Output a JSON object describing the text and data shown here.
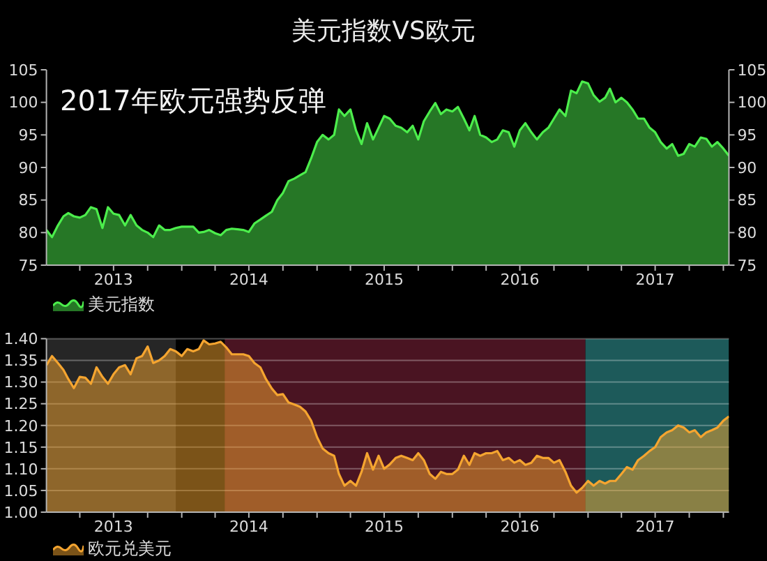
{
  "chart_data": [
    {
      "type": "area",
      "title": "美元指数VS欧元",
      "annotations": [
        "2017年欧元强势反弹"
      ],
      "x": [
        "2013-01-01",
        "2013-01-16",
        "2013-02-01",
        "2013-02-16",
        "2013-03-01",
        "2013-03-16",
        "2013-04-01",
        "2013-04-16",
        "2013-05-01",
        "2013-05-16",
        "2013-06-01",
        "2013-06-16",
        "2013-07-01",
        "2013-07-16",
        "2013-08-01",
        "2013-08-16",
        "2013-09-01",
        "2013-09-16",
        "2013-10-01",
        "2013-10-16",
        "2013-11-01",
        "2013-11-16",
        "2013-12-01",
        "2013-12-16",
        "2014-01-01",
        "2014-01-16",
        "2014-02-01",
        "2014-02-16",
        "2014-03-01",
        "2014-03-16",
        "2014-04-01",
        "2014-04-16",
        "2014-05-01",
        "2014-05-16",
        "2014-06-01",
        "2014-06-16",
        "2014-07-01",
        "2014-07-16",
        "2014-08-01",
        "2014-08-16",
        "2014-09-01",
        "2014-09-16",
        "2014-10-01",
        "2014-10-16",
        "2014-11-01",
        "2014-11-16",
        "2014-12-01",
        "2014-12-16",
        "2015-01-01",
        "2015-01-16",
        "2015-02-01",
        "2015-02-16",
        "2015-03-01",
        "2015-03-16",
        "2015-04-01",
        "2015-04-16",
        "2015-05-01",
        "2015-05-16",
        "2015-06-01",
        "2015-06-16",
        "2015-07-01",
        "2015-07-16",
        "2015-08-01",
        "2015-08-16",
        "2015-09-01",
        "2015-09-16",
        "2015-10-01",
        "2015-10-16",
        "2015-11-01",
        "2015-11-16",
        "2015-12-01",
        "2015-12-16",
        "2016-01-01",
        "2016-01-16",
        "2016-02-01",
        "2016-02-16",
        "2016-03-01",
        "2016-03-16",
        "2016-04-01",
        "2016-04-16",
        "2016-05-01",
        "2016-05-16",
        "2016-06-01",
        "2016-06-16",
        "2016-07-01",
        "2016-07-16",
        "2016-08-01",
        "2016-08-16",
        "2016-09-01",
        "2016-09-16",
        "2016-10-01",
        "2016-10-16",
        "2016-11-01",
        "2016-11-16",
        "2016-12-01",
        "2016-12-16",
        "2017-01-01",
        "2017-01-16",
        "2017-02-01",
        "2017-02-16",
        "2017-03-01",
        "2017-03-16",
        "2017-04-01",
        "2017-04-16",
        "2017-05-01",
        "2017-05-16",
        "2017-06-01",
        "2017-06-16",
        "2017-07-01",
        "2017-07-16",
        "2017-08-01",
        "2017-08-16",
        "2017-09-01",
        "2017-09-16",
        "2017-10-01",
        "2017-10-16",
        "2017-11-01",
        "2017-11-16",
        "2017-12-01",
        "2017-12-16",
        "2018-01-01",
        "2018-01-16"
      ],
      "series": [
        {
          "name": "美元指数",
          "color": "#4cee4c",
          "values": [
            80.4,
            79.3,
            81.1,
            82.5,
            83.0,
            82.5,
            82.3,
            82.7,
            83.9,
            83.6,
            80.7,
            83.9,
            82.9,
            82.7,
            81.1,
            82.7,
            81.1,
            80.4,
            80.0,
            79.3,
            81.1,
            80.4,
            80.4,
            80.7,
            80.9,
            80.9,
            80.9,
            80.0,
            80.1,
            80.4,
            79.9,
            79.6,
            80.4,
            80.6,
            80.5,
            80.4,
            80.1,
            81.4,
            82.0,
            82.6,
            83.2,
            85.0,
            86.1,
            87.9,
            88.3,
            88.8,
            89.3,
            91.4,
            93.9,
            95.0,
            94.3,
            95.0,
            98.9,
            97.9,
            98.9,
            95.7,
            93.6,
            96.8,
            94.3,
            96.1,
            97.9,
            97.5,
            96.4,
            96.1,
            95.4,
            96.4,
            94.3,
            97.1,
            98.6,
            99.9,
            98.2,
            98.9,
            98.6,
            99.3,
            97.5,
            95.7,
            97.9,
            95.0,
            94.6,
            93.9,
            94.3,
            95.7,
            95.4,
            93.2,
            95.7,
            96.8,
            95.4,
            94.3,
            95.4,
            96.1,
            97.5,
            98.9,
            97.9,
            101.8,
            101.4,
            103.2,
            102.9,
            101.1,
            100.1,
            100.7,
            102.1,
            100.0,
            100.7,
            100.0,
            98.9,
            97.5,
            97.5,
            96.1,
            95.4,
            93.9,
            92.9,
            93.6,
            91.8,
            92.1,
            93.6,
            93.2,
            94.6,
            94.4,
            93.2,
            93.9,
            92.9,
            91.8
          ]
        }
      ],
      "xlim": [
        "2013-01-01",
        "2018-01-16"
      ],
      "xticks": [
        {
          "value": "2013-04-01",
          "label": null
        },
        {
          "value": "2013-07-01",
          "label": "2013"
        },
        {
          "value": "2013-10-01",
          "label": null
        },
        {
          "value": "2014-01-01",
          "label": null
        },
        {
          "value": "2014-04-01",
          "label": null
        },
        {
          "value": "2014-07-01",
          "label": "2014"
        },
        {
          "value": "2014-10-01",
          "label": null
        },
        {
          "value": "2015-01-01",
          "label": null
        },
        {
          "value": "2015-04-01",
          "label": null
        },
        {
          "value": "2015-07-01",
          "label": "2015"
        },
        {
          "value": "2015-10-01",
          "label": null
        },
        {
          "value": "2016-01-01",
          "label": null
        },
        {
          "value": "2016-04-01",
          "label": null
        },
        {
          "value": "2016-07-01",
          "label": "2016"
        },
        {
          "value": "2016-10-01",
          "label": null
        },
        {
          "value": "2017-01-01",
          "label": null
        },
        {
          "value": "2017-04-01",
          "label": null
        },
        {
          "value": "2017-07-01",
          "label": "2017"
        },
        {
          "value": "2017-10-01",
          "label": null
        },
        {
          "value": "2018-01-01",
          "label": null
        }
      ],
      "ylim": [
        75,
        105
      ],
      "yticks": [
        75,
        80,
        85,
        90,
        95,
        100,
        105
      ],
      "y2lim": [
        75,
        105
      ],
      "y2ticks": [
        75,
        80,
        85,
        90,
        95,
        100,
        105
      ],
      "legend": "bottom left"
    },
    {
      "type": "area",
      "x": [
        "2013-01-01",
        "2013-01-16",
        "2013-02-01",
        "2013-02-16",
        "2013-03-01",
        "2013-03-16",
        "2013-04-01",
        "2013-04-16",
        "2013-05-01",
        "2013-05-16",
        "2013-06-01",
        "2013-06-16",
        "2013-07-01",
        "2013-07-16",
        "2013-08-01",
        "2013-08-16",
        "2013-09-01",
        "2013-09-16",
        "2013-10-01",
        "2013-10-16",
        "2013-11-01",
        "2013-11-16",
        "2013-12-01",
        "2013-12-16",
        "2014-01-01",
        "2014-01-16",
        "2014-02-01",
        "2014-02-16",
        "2014-03-01",
        "2014-03-16",
        "2014-04-01",
        "2014-04-16",
        "2014-05-01",
        "2014-05-16",
        "2014-06-01",
        "2014-06-16",
        "2014-07-01",
        "2014-07-16",
        "2014-08-01",
        "2014-08-16",
        "2014-09-01",
        "2014-09-16",
        "2014-10-01",
        "2014-10-16",
        "2014-11-01",
        "2014-11-16",
        "2014-12-01",
        "2014-12-16",
        "2015-01-01",
        "2015-01-16",
        "2015-02-01",
        "2015-02-16",
        "2015-03-01",
        "2015-03-16",
        "2015-04-01",
        "2015-04-16",
        "2015-05-01",
        "2015-05-16",
        "2015-06-01",
        "2015-06-16",
        "2015-07-01",
        "2015-07-16",
        "2015-08-01",
        "2015-08-16",
        "2015-09-01",
        "2015-09-16",
        "2015-10-01",
        "2015-10-16",
        "2015-11-01",
        "2015-11-16",
        "2015-12-01",
        "2015-12-16",
        "2016-01-01",
        "2016-01-16",
        "2016-02-01",
        "2016-02-16",
        "2016-03-01",
        "2016-03-16",
        "2016-04-01",
        "2016-04-16",
        "2016-05-01",
        "2016-05-16",
        "2016-06-01",
        "2016-06-16",
        "2016-07-01",
        "2016-07-16",
        "2016-08-01",
        "2016-08-16",
        "2016-09-01",
        "2016-09-16",
        "2016-10-01",
        "2016-10-16",
        "2016-11-01",
        "2016-11-16",
        "2016-12-01",
        "2016-12-16",
        "2017-01-01",
        "2017-01-16",
        "2017-02-01",
        "2017-02-16",
        "2017-03-01",
        "2017-03-16",
        "2017-04-01",
        "2017-04-16",
        "2017-05-01",
        "2017-05-16",
        "2017-06-01",
        "2017-06-16",
        "2017-07-01",
        "2017-07-16",
        "2017-08-01",
        "2017-08-16",
        "2017-09-01",
        "2017-09-16",
        "2017-10-01",
        "2017-10-16",
        "2017-11-01",
        "2017-11-16",
        "2017-12-01",
        "2017-12-16",
        "2018-01-01",
        "2018-01-16"
      ],
      "series": [
        {
          "name": "欧元兑美元",
          "color": "#f5a530",
          "values": [
            1.339,
            1.36,
            1.344,
            1.328,
            1.307,
            1.286,
            1.312,
            1.31,
            1.296,
            1.334,
            1.312,
            1.296,
            1.318,
            1.334,
            1.339,
            1.318,
            1.355,
            1.36,
            1.382,
            1.344,
            1.35,
            1.36,
            1.376,
            1.371,
            1.36,
            1.376,
            1.371,
            1.376,
            1.396,
            1.387,
            1.389,
            1.393,
            1.38,
            1.364,
            1.364,
            1.364,
            1.36,
            1.344,
            1.334,
            1.307,
            1.285,
            1.27,
            1.272,
            1.253,
            1.248,
            1.243,
            1.232,
            1.211,
            1.173,
            1.147,
            1.136,
            1.13,
            1.088,
            1.061,
            1.072,
            1.061,
            1.093,
            1.136,
            1.098,
            1.13,
            1.1,
            1.11,
            1.125,
            1.13,
            1.125,
            1.12,
            1.136,
            1.12,
            1.088,
            1.077,
            1.093,
            1.088,
            1.088,
            1.098,
            1.13,
            1.109,
            1.136,
            1.13,
            1.136,
            1.136,
            1.141,
            1.12,
            1.125,
            1.114,
            1.12,
            1.109,
            1.114,
            1.13,
            1.125,
            1.125,
            1.114,
            1.12,
            1.093,
            1.061,
            1.045,
            1.056,
            1.072,
            1.061,
            1.072,
            1.066,
            1.072,
            1.072,
            1.088,
            1.104,
            1.098,
            1.12,
            1.13,
            1.141,
            1.15,
            1.173,
            1.184,
            1.189,
            1.2,
            1.195,
            1.184,
            1.189,
            1.173,
            1.184,
            1.189,
            1.195,
            1.211,
            1.221
          ]
        }
      ],
      "xlim": [
        "2013-01-01",
        "2018-01-16"
      ],
      "xticks": [
        {
          "value": "2013-04-01",
          "label": null
        },
        {
          "value": "2013-07-01",
          "label": "2013"
        },
        {
          "value": "2013-10-01",
          "label": null
        },
        {
          "value": "2014-01-01",
          "label": null
        },
        {
          "value": "2014-04-01",
          "label": null
        },
        {
          "value": "2014-07-01",
          "label": "2014"
        },
        {
          "value": "2014-10-01",
          "label": null
        },
        {
          "value": "2015-01-01",
          "label": null
        },
        {
          "value": "2015-04-01",
          "label": null
        },
        {
          "value": "2015-07-01",
          "label": "2015"
        },
        {
          "value": "2015-10-01",
          "label": null
        },
        {
          "value": "2016-01-01",
          "label": null
        },
        {
          "value": "2016-04-01",
          "label": null
        },
        {
          "value": "2016-07-01",
          "label": "2016"
        },
        {
          "value": "2016-10-01",
          "label": null
        },
        {
          "value": "2017-01-01",
          "label": null
        },
        {
          "value": "2017-04-01",
          "label": null
        },
        {
          "value": "2017-07-01",
          "label": "2017"
        },
        {
          "value": "2017-10-01",
          "label": null
        },
        {
          "value": "2018-01-01",
          "label": null
        }
      ],
      "ylim": [
        1.0,
        1.4
      ],
      "yticks": [
        {
          "value": 1.0,
          "label": "1.00"
        },
        1.05,
        {
          "value": 1.1,
          "label": "1.10"
        },
        1.15,
        {
          "value": 1.2,
          "label": "1.20"
        },
        1.25,
        {
          "value": 1.3,
          "label": "1.30"
        },
        1.35,
        {
          "value": 1.4,
          "label": "1.40"
        }
      ],
      "grid": "y",
      "legend": "bottom left",
      "bands": [
        {
          "axis": "x",
          "from": "2013-01-01",
          "to": "2013-12-16",
          "color": "#262626"
        },
        {
          "axis": "x",
          "from": "2014-04-27",
          "to": "2016-12-25",
          "color": "#4a1422"
        },
        {
          "axis": "x",
          "from": "2016-12-25",
          "to": "2018-01-16",
          "color": "#1d5a5a"
        }
      ]
    }
  ]
}
